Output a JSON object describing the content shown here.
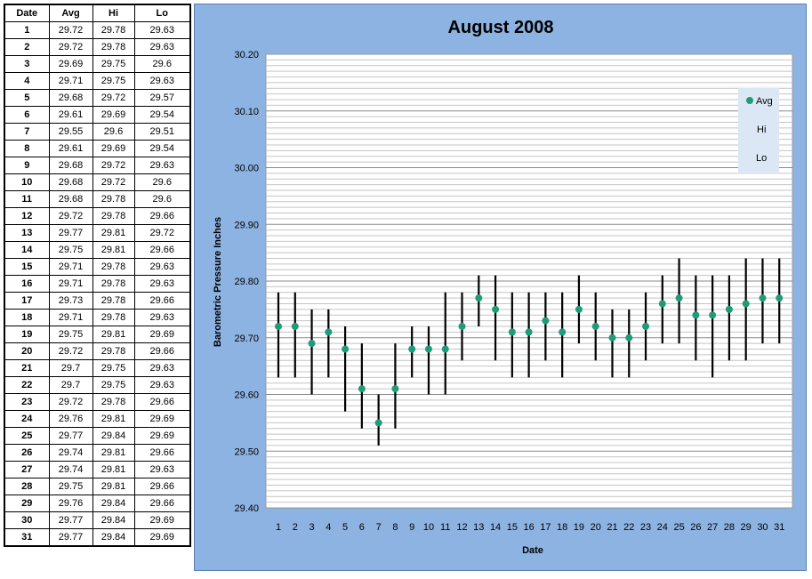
{
  "table": {
    "headers": [
      "Date",
      "Avg",
      "Hi",
      "Lo"
    ],
    "rows": [
      [
        "1",
        "29.72",
        "29.78",
        "29.63"
      ],
      [
        "2",
        "29.72",
        "29.78",
        "29.63"
      ],
      [
        "3",
        "29.69",
        "29.75",
        "29.6"
      ],
      [
        "4",
        "29.71",
        "29.75",
        "29.63"
      ],
      [
        "5",
        "29.68",
        "29.72",
        "29.57"
      ],
      [
        "6",
        "29.61",
        "29.69",
        "29.54"
      ],
      [
        "7",
        "29.55",
        "29.6",
        "29.51"
      ],
      [
        "8",
        "29.61",
        "29.69",
        "29.54"
      ],
      [
        "9",
        "29.68",
        "29.72",
        "29.63"
      ],
      [
        "10",
        "29.68",
        "29.72",
        "29.6"
      ],
      [
        "11",
        "29.68",
        "29.78",
        "29.6"
      ],
      [
        "12",
        "29.72",
        "29.78",
        "29.66"
      ],
      [
        "13",
        "29.77",
        "29.81",
        "29.72"
      ],
      [
        "14",
        "29.75",
        "29.81",
        "29.66"
      ],
      [
        "15",
        "29.71",
        "29.78",
        "29.63"
      ],
      [
        "16",
        "29.71",
        "29.78",
        "29.63"
      ],
      [
        "17",
        "29.73",
        "29.78",
        "29.66"
      ],
      [
        "18",
        "29.71",
        "29.78",
        "29.63"
      ],
      [
        "19",
        "29.75",
        "29.81",
        "29.69"
      ],
      [
        "20",
        "29.72",
        "29.78",
        "29.66"
      ],
      [
        "21",
        "29.7",
        "29.75",
        "29.63"
      ],
      [
        "22",
        "29.7",
        "29.75",
        "29.63"
      ],
      [
        "23",
        "29.72",
        "29.78",
        "29.66"
      ],
      [
        "24",
        "29.76",
        "29.81",
        "29.69"
      ],
      [
        "25",
        "29.77",
        "29.84",
        "29.69"
      ],
      [
        "26",
        "29.74",
        "29.81",
        "29.66"
      ],
      [
        "27",
        "29.74",
        "29.81",
        "29.63"
      ],
      [
        "28",
        "29.75",
        "29.81",
        "29.66"
      ],
      [
        "29",
        "29.76",
        "29.84",
        "29.66"
      ],
      [
        "30",
        "29.77",
        "29.84",
        "29.69"
      ],
      [
        "31",
        "29.77",
        "29.84",
        "29.69"
      ]
    ]
  },
  "chart_data": {
    "type": "scatter",
    "title": "August 2008",
    "xlabel": "Date",
    "ylabel": "Barometric Pressure Inches",
    "ylim": [
      29.4,
      30.2
    ],
    "y_ticks": [
      "29.40",
      "29.50",
      "29.60",
      "29.70",
      "29.80",
      "29.90",
      "30.00",
      "30.10",
      "30.20"
    ],
    "x": [
      1,
      2,
      3,
      4,
      5,
      6,
      7,
      8,
      9,
      10,
      11,
      12,
      13,
      14,
      15,
      16,
      17,
      18,
      19,
      20,
      21,
      22,
      23,
      24,
      25,
      26,
      27,
      28,
      29,
      30,
      31
    ],
    "series": [
      {
        "name": "Avg",
        "values": [
          29.72,
          29.72,
          29.69,
          29.71,
          29.68,
          29.61,
          29.55,
          29.61,
          29.68,
          29.68,
          29.68,
          29.72,
          29.77,
          29.75,
          29.71,
          29.71,
          29.73,
          29.71,
          29.75,
          29.72,
          29.7,
          29.7,
          29.72,
          29.76,
          29.77,
          29.74,
          29.74,
          29.75,
          29.76,
          29.77,
          29.77
        ]
      },
      {
        "name": "Hi",
        "values": [
          29.78,
          29.78,
          29.75,
          29.75,
          29.72,
          29.69,
          29.6,
          29.69,
          29.72,
          29.72,
          29.78,
          29.78,
          29.81,
          29.81,
          29.78,
          29.78,
          29.78,
          29.78,
          29.81,
          29.78,
          29.75,
          29.75,
          29.78,
          29.81,
          29.84,
          29.81,
          29.81,
          29.81,
          29.84,
          29.84,
          29.84
        ]
      },
      {
        "name": "Lo",
        "values": [
          29.63,
          29.63,
          29.6,
          29.63,
          29.57,
          29.54,
          29.51,
          29.54,
          29.63,
          29.6,
          29.6,
          29.66,
          29.72,
          29.66,
          29.63,
          29.63,
          29.66,
          29.63,
          29.69,
          29.66,
          29.63,
          29.63,
          29.66,
          29.69,
          29.69,
          29.66,
          29.63,
          29.66,
          29.66,
          29.69,
          29.69
        ]
      }
    ],
    "grid": true,
    "legend": "top-right",
    "colors": {
      "avg_marker": "#1e9c78",
      "range_line": "#000000",
      "panel_background": "#8db3e2",
      "plot_background": "#ffffff",
      "legend_background": "#dbe7f4"
    }
  }
}
